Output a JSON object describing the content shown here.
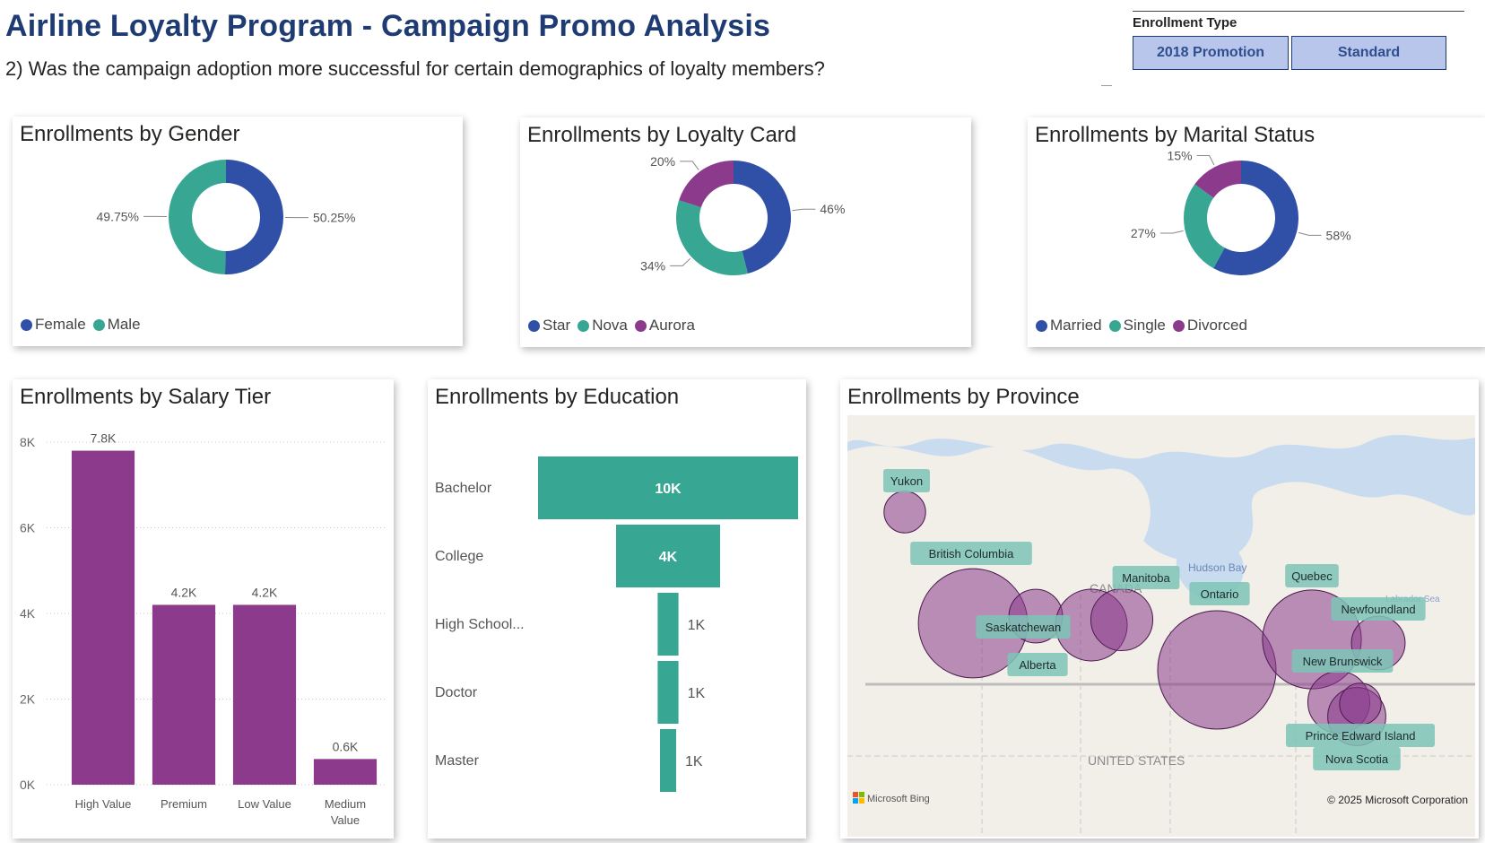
{
  "header": {
    "title": "Airline Loyalty Program - Campaign Promo Analysis",
    "subtitle": "2) Was the campaign adoption more successful for certain demographics of loyalty members?"
  },
  "slicer": {
    "title": "Enrollment Type",
    "options": [
      "2018 Promotion",
      "Standard"
    ]
  },
  "colors": {
    "blue": "#3050a8",
    "teal": "#37a794",
    "purple": "#8b3a8c",
    "title_navy": "#1f3b73"
  },
  "map": {
    "attribution_left": "Microsoft Bing",
    "attribution_right": "© 2025 Microsoft Corporation",
    "region_labels": [
      "CANADA",
      "Hudson Bay",
      "Labrador Sea",
      "UNITED STATES"
    ]
  },
  "chart_data": [
    {
      "type": "pie",
      "title": "Enrollments by Gender",
      "categories": [
        "Female",
        "Male"
      ],
      "values": [
        50.25,
        49.75
      ],
      "labels": [
        "50.25%",
        "49.75%"
      ],
      "colors": [
        "#3050a8",
        "#37a794"
      ],
      "donut": true,
      "legend": "bottom-left"
    },
    {
      "type": "pie",
      "title": "Enrollments by Loyalty Card",
      "categories": [
        "Star",
        "Nova",
        "Aurora"
      ],
      "values": [
        46,
        34,
        20
      ],
      "labels": [
        "46%",
        "34%",
        "20%"
      ],
      "colors": [
        "#3050a8",
        "#37a794",
        "#8b3a8c"
      ],
      "donut": true,
      "legend": "bottom-left"
    },
    {
      "type": "pie",
      "title": "Enrollments by Marital Status",
      "categories": [
        "Married",
        "Single",
        "Divorced"
      ],
      "values": [
        58,
        27,
        15
      ],
      "labels": [
        "58%",
        "27%",
        "15%"
      ],
      "colors": [
        "#3050a8",
        "#37a794",
        "#8b3a8c"
      ],
      "donut": true,
      "legend": "bottom-left"
    },
    {
      "type": "bar",
      "title": "Enrollments by Salary Tier",
      "categories": [
        "High Value",
        "Premium",
        "Low Value",
        "Medium Value"
      ],
      "values": [
        7800,
        4200,
        4200,
        600
      ],
      "data_labels": [
        "7.8K",
        "4.2K",
        "4.2K",
        "0.6K"
      ],
      "yticks": [
        "0K",
        "2K",
        "4K",
        "6K",
        "8K"
      ],
      "ylim": [
        0,
        8000
      ],
      "color": "#8b3a8c",
      "grid": true
    },
    {
      "type": "bar",
      "orientation": "funnel",
      "title": "Enrollments by Education",
      "categories": [
        "Bachelor",
        "College",
        "High School...",
        "Doctor",
        "Master"
      ],
      "values": [
        10000,
        4000,
        800,
        800,
        500
      ],
      "data_labels": [
        "10K",
        "4K",
        "1K",
        "1K",
        "1K"
      ],
      "color": "#37a794"
    },
    {
      "type": "scatter",
      "title": "Enrollments by Province",
      "categories": [
        "Yukon",
        "British Columbia",
        "Alberta",
        "Saskatchewan",
        "Manitoba",
        "Ontario",
        "Quebec",
        "Newfoundland",
        "New Brunswick",
        "Nova Scotia",
        "Prince Edward Island"
      ],
      "values": [
        1,
        26,
        8,
        3,
        5,
        32,
        20,
        3,
        5,
        4,
        1
      ],
      "color": "#8b3a8c"
    }
  ]
}
